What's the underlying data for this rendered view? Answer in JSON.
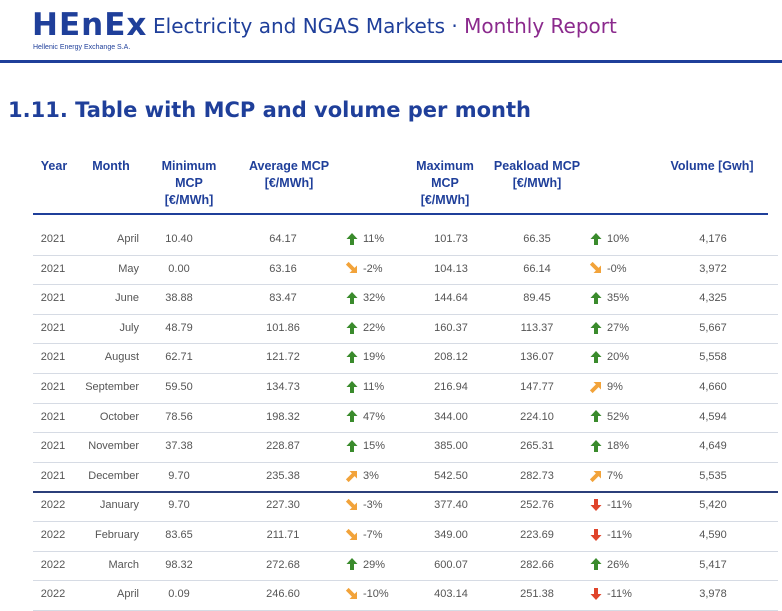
{
  "header": {
    "logo_main": "HEnEx",
    "logo_sub": "Hellenic Energy Exchange S.A.",
    "title_main": "Electricity and NGAS Markets ·",
    "title_report": "Monthly Report"
  },
  "section": {
    "title": "1.11.  Table with MCP and volume per month"
  },
  "table": {
    "headers": {
      "year": "Year",
      "month": "Month",
      "min_mcp": [
        "Minimum",
        "MCP",
        "[€/MWh]"
      ],
      "avg_mcp": [
        "Average MCP",
        "[€/MWh]"
      ],
      "max_mcp": [
        "Maximum",
        "MCP",
        "[€/MWh]"
      ],
      "peakload": [
        "Peakload MCP",
        "[€/MWh]"
      ],
      "volume": [
        "Volume [Gwh]"
      ]
    },
    "colors": {
      "up": "#3a8b2c",
      "mild_up": "#f2a33a",
      "mild_down": "#f2a33a",
      "down": "#e0442a"
    },
    "rows": [
      {
        "year": "2021",
        "month": "April",
        "min": "10.40",
        "avg": "64.17",
        "avg_dir": "up",
        "avg_chg": "11%",
        "max": "101.73",
        "peak": "66.35",
        "peak_dir": "up",
        "peak_chg": "10%",
        "vol": "4,176"
      },
      {
        "year": "2021",
        "month": "May",
        "min": "0.00",
        "avg": "63.16",
        "avg_dir": "mild_down",
        "avg_chg": "-2%",
        "max": "104.13",
        "peak": "66.14",
        "peak_dir": "mild_down",
        "peak_chg": "-0%",
        "vol": "3,972"
      },
      {
        "year": "2021",
        "month": "June",
        "min": "38.88",
        "avg": "83.47",
        "avg_dir": "up",
        "avg_chg": "32%",
        "max": "144.64",
        "peak": "89.45",
        "peak_dir": "up",
        "peak_chg": "35%",
        "vol": "4,325"
      },
      {
        "year": "2021",
        "month": "July",
        "min": "48.79",
        "avg": "101.86",
        "avg_dir": "up",
        "avg_chg": "22%",
        "max": "160.37",
        "peak": "113.37",
        "peak_dir": "up",
        "peak_chg": "27%",
        "vol": "5,667"
      },
      {
        "year": "2021",
        "month": "August",
        "min": "62.71",
        "avg": "121.72",
        "avg_dir": "up",
        "avg_chg": "19%",
        "max": "208.12",
        "peak": "136.07",
        "peak_dir": "up",
        "peak_chg": "20%",
        "vol": "5,558"
      },
      {
        "year": "2021",
        "month": "September",
        "min": "59.50",
        "avg": "134.73",
        "avg_dir": "up",
        "avg_chg": "11%",
        "max": "216.94",
        "peak": "147.77",
        "peak_dir": "mild_up",
        "peak_chg": "9%",
        "vol": "4,660"
      },
      {
        "year": "2021",
        "month": "October",
        "min": "78.56",
        "avg": "198.32",
        "avg_dir": "up",
        "avg_chg": "47%",
        "max": "344.00",
        "peak": "224.10",
        "peak_dir": "up",
        "peak_chg": "52%",
        "vol": "4,594"
      },
      {
        "year": "2021",
        "month": "November",
        "min": "37.38",
        "avg": "228.87",
        "avg_dir": "up",
        "avg_chg": "15%",
        "max": "385.00",
        "peak": "265.31",
        "peak_dir": "up",
        "peak_chg": "18%",
        "vol": "4,649"
      },
      {
        "year": "2021",
        "month": "December",
        "min": "9.70",
        "avg": "235.38",
        "avg_dir": "mild_up",
        "avg_chg": "3%",
        "max": "542.50",
        "peak": "282.73",
        "peak_dir": "mild_up",
        "peak_chg": "7%",
        "vol": "5,535"
      },
      {
        "year": "2022",
        "month": "January",
        "min": "9.70",
        "avg": "227.30",
        "avg_dir": "mild_down",
        "avg_chg": "-3%",
        "max": "377.40",
        "peak": "252.76",
        "peak_dir": "down",
        "peak_chg": "-11%",
        "vol": "5,420"
      },
      {
        "year": "2022",
        "month": "February",
        "min": "83.65",
        "avg": "211.71",
        "avg_dir": "mild_down",
        "avg_chg": "-7%",
        "max": "349.00",
        "peak": "223.69",
        "peak_dir": "down",
        "peak_chg": "-11%",
        "vol": "4,590"
      },
      {
        "year": "2022",
        "month": "March",
        "min": "98.32",
        "avg": "272.68",
        "avg_dir": "up",
        "avg_chg": "29%",
        "max": "600.07",
        "peak": "282.66",
        "peak_dir": "up",
        "peak_chg": "26%",
        "vol": "5,417"
      },
      {
        "year": "2022",
        "month": "April",
        "min": "0.09",
        "avg": "246.60",
        "avg_dir": "mild_down",
        "avg_chg": "-10%",
        "max": "403.14",
        "peak": "251.38",
        "peak_dir": "down",
        "peak_chg": "-11%",
        "vol": "3,978"
      }
    ]
  }
}
